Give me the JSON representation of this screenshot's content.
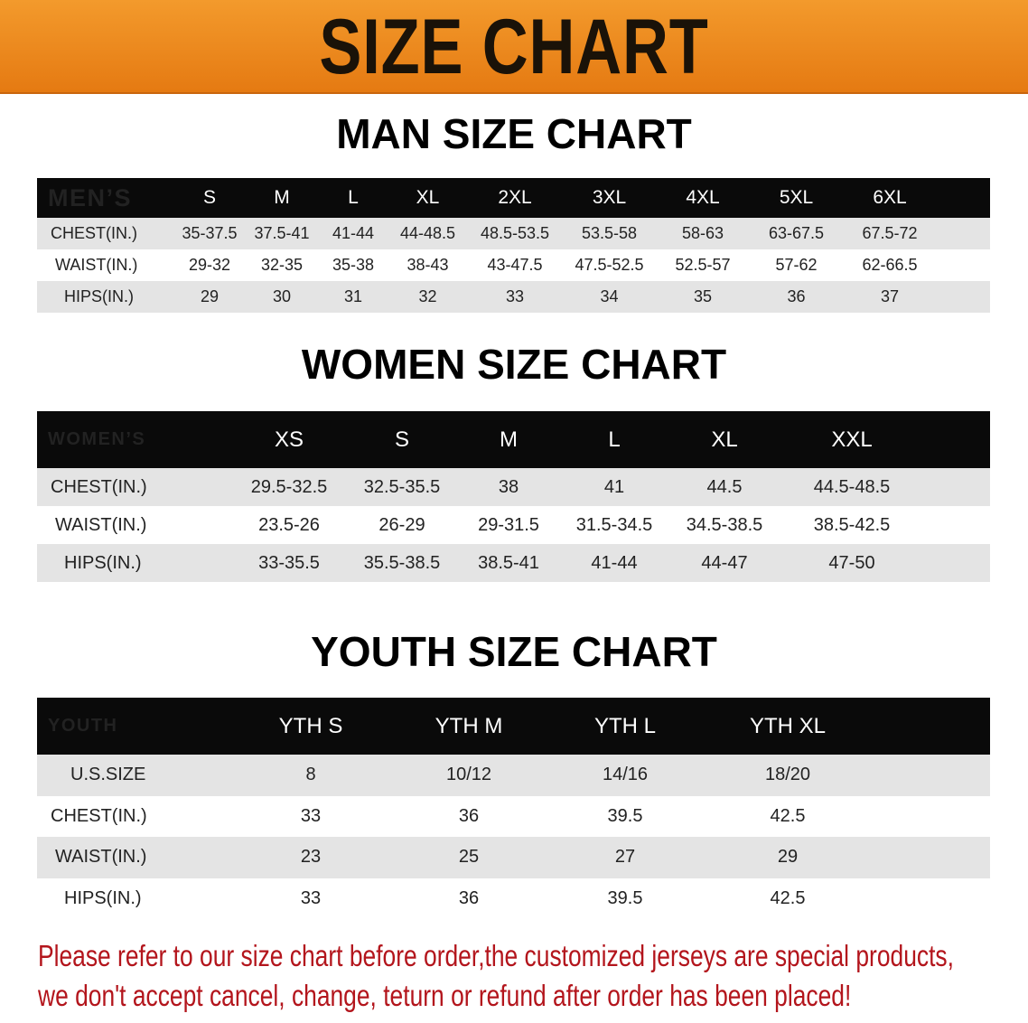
{
  "title": "SIZE CHART",
  "colors": {
    "banner": "#ec8a1f",
    "header_row": "#0a0a0a",
    "stripe": "#e4e4e4",
    "note": "#b3151c"
  },
  "men": {
    "heading": "MAN SIZE CHART",
    "header": "MEN’S",
    "sizes": [
      "S",
      "M",
      "L",
      "XL",
      "2XL",
      "3XL",
      "4XL",
      "5XL",
      "6XL"
    ],
    "rows": [
      {
        "label": "CHEST(IN.)",
        "values": [
          "35-37.5",
          "37.5-41",
          "41-44",
          "44-48.5",
          "48.5-53.5",
          "53.5-58",
          "58-63",
          "63-67.5",
          "67.5-72"
        ]
      },
      {
        "label": "WAIST(IN.)",
        "values": [
          "29-32",
          "32-35",
          "35-38",
          "38-43",
          "43-47.5",
          "47.5-52.5",
          "52.5-57",
          "57-62",
          "62-66.5"
        ]
      },
      {
        "label": "HIPS(IN.)",
        "values": [
          "29",
          "30",
          "31",
          "32",
          "33",
          "34",
          "35",
          "36",
          "37"
        ]
      }
    ]
  },
  "women": {
    "heading": "WOMEN SIZE CHART",
    "header": "WOMEN’S",
    "sizes": [
      "XS",
      "S",
      "M",
      "L",
      "XL",
      "XXL"
    ],
    "rows": [
      {
        "label": "CHEST(IN.)",
        "values": [
          "29.5-32.5",
          "32.5-35.5",
          "38",
          "41",
          "44.5",
          "44.5-48.5"
        ]
      },
      {
        "label": "WAIST(IN.)",
        "values": [
          "23.5-26",
          "26-29",
          "29-31.5",
          "31.5-34.5",
          "34.5-38.5",
          "38.5-42.5"
        ]
      },
      {
        "label": "HIPS(IN.)",
        "values": [
          "33-35.5",
          "35.5-38.5",
          "38.5-41",
          "41-44",
          "44-47",
          "47-50"
        ]
      }
    ]
  },
  "youth": {
    "heading": "YOUTH SIZE CHART",
    "header": "YOUTH",
    "sizes": [
      "YTH S",
      "YTH M",
      "YTH L",
      "YTH XL"
    ],
    "rows": [
      {
        "label": "U.S.SIZE",
        "values": [
          "8",
          "10/12",
          "14/16",
          "18/20"
        ]
      },
      {
        "label": "CHEST(IN.)",
        "values": [
          "33",
          "36",
          "39.5",
          "42.5"
        ]
      },
      {
        "label": "WAIST(IN.)",
        "values": [
          "23",
          "25",
          "27",
          "29"
        ]
      },
      {
        "label": "HIPS(IN.)",
        "values": [
          "33",
          "36",
          "39.5",
          "42.5"
        ]
      }
    ]
  },
  "note": {
    "line1": "Please refer to our size chart before order,the customized jerseys are special products,",
    "line2": "we don't accept cancel, change, teturn or refund after order has been placed!"
  }
}
